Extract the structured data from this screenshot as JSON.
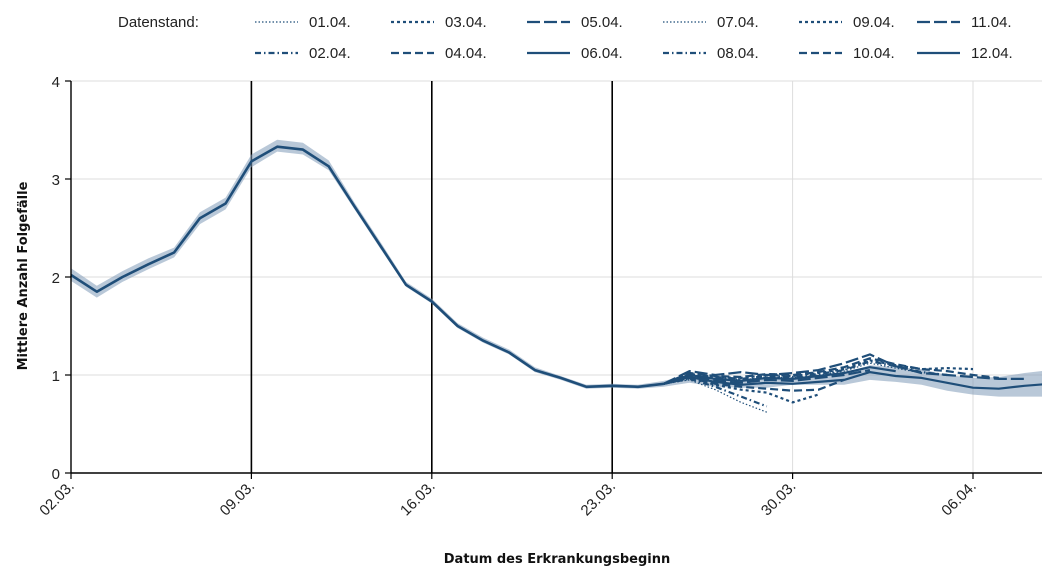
{
  "chart_data": {
    "type": "line",
    "xlabel": "Datum des Erkrankungsbeginn",
    "ylabel": "Mittlere Anzahl Folgefälle",
    "ylim": [
      0,
      4
    ],
    "yticks": [
      0,
      1,
      2,
      3,
      4
    ],
    "xlim": [
      "2020-03-02",
      "2020-04-09"
    ],
    "xticks": [
      {
        "date": "2020-03-02",
        "label": "02.03."
      },
      {
        "date": "2020-03-09",
        "label": "09.03."
      },
      {
        "date": "2020-03-16",
        "label": "16.03."
      },
      {
        "date": "2020-03-23",
        "label": "23.03."
      },
      {
        "date": "2020-03-30",
        "label": "30.03."
      },
      {
        "date": "2020-04-06",
        "label": "06.04."
      }
    ],
    "vlines": [
      "2020-03-09",
      "2020-03-16",
      "2020-03-23"
    ],
    "grid": true,
    "legend_title": "Datenstand:",
    "legend_position": "top",
    "colors": {
      "line": "#1f4e79",
      "band": "#7f9bb8",
      "vline": "#000000",
      "grid": "#dddddd"
    },
    "base": {
      "x": [
        "2020-03-02",
        "2020-03-03",
        "2020-03-04",
        "2020-03-05",
        "2020-03-06",
        "2020-03-07",
        "2020-03-08",
        "2020-03-09",
        "2020-03-10",
        "2020-03-11",
        "2020-03-12",
        "2020-03-13",
        "2020-03-14",
        "2020-03-15",
        "2020-03-16",
        "2020-03-17",
        "2020-03-18",
        "2020-03-19",
        "2020-03-20",
        "2020-03-21",
        "2020-03-22",
        "2020-03-23",
        "2020-03-24",
        "2020-03-25"
      ],
      "values": [
        2.02,
        1.85,
        2.0,
        2.13,
        2.25,
        2.6,
        2.75,
        3.18,
        3.33,
        3.3,
        3.13,
        2.72,
        2.32,
        1.92,
        1.75,
        1.5,
        1.35,
        1.23,
        1.05,
        0.97,
        0.88,
        0.89,
        0.88,
        0.91
      ]
    },
    "band": {
      "x": [
        "2020-03-02",
        "2020-03-03",
        "2020-03-04",
        "2020-03-05",
        "2020-03-06",
        "2020-03-07",
        "2020-03-08",
        "2020-03-09",
        "2020-03-10",
        "2020-03-11",
        "2020-03-12",
        "2020-03-13",
        "2020-03-14",
        "2020-03-15",
        "2020-03-16",
        "2020-03-17",
        "2020-03-18",
        "2020-03-19",
        "2020-03-20",
        "2020-03-21",
        "2020-03-22",
        "2020-03-23",
        "2020-03-24",
        "2020-03-25",
        "2020-03-26",
        "2020-03-27",
        "2020-03-28",
        "2020-03-29",
        "2020-03-30",
        "2020-03-31",
        "2020-04-01",
        "2020-04-02",
        "2020-04-03",
        "2020-04-04",
        "2020-04-05",
        "2020-04-06",
        "2020-04-07",
        "2020-04-08",
        "2020-04-09"
      ],
      "lower": [
        1.96,
        1.79,
        1.95,
        2.08,
        2.2,
        2.54,
        2.69,
        3.12,
        3.28,
        3.25,
        3.09,
        2.69,
        2.29,
        1.9,
        1.73,
        1.48,
        1.33,
        1.21,
        1.03,
        0.95,
        0.86,
        0.87,
        0.86,
        0.88,
        0.92,
        0.88,
        0.87,
        0.87,
        0.9,
        0.9,
        0.9,
        0.95,
        0.93,
        0.9,
        0.84,
        0.8,
        0.78,
        0.78,
        0.78
      ],
      "upper": [
        2.09,
        1.91,
        2.06,
        2.19,
        2.3,
        2.66,
        2.81,
        3.25,
        3.4,
        3.37,
        3.19,
        2.76,
        2.36,
        1.95,
        1.78,
        1.53,
        1.38,
        1.26,
        1.08,
        0.99,
        0.9,
        0.91,
        0.9,
        0.94,
        1.0,
        0.97,
        0.96,
        0.96,
        0.98,
        0.99,
        1.02,
        1.1,
        1.08,
        1.06,
        1.0,
        0.97,
        0.98,
        1.02,
        1.05
      ]
    },
    "series": [
      {
        "name": "01.04.",
        "style": "dotted",
        "x": [
          "2020-03-25",
          "2020-03-26",
          "2020-03-27",
          "2020-03-28",
          "2020-03-29"
        ],
        "values": [
          0.91,
          0.95,
          0.85,
          0.72,
          0.62
        ]
      },
      {
        "name": "02.04.",
        "style": "dashdot",
        "x": [
          "2020-03-25",
          "2020-03-26",
          "2020-03-27",
          "2020-03-28",
          "2020-03-29"
        ],
        "values": [
          0.91,
          0.96,
          0.88,
          0.78,
          0.68
        ]
      },
      {
        "name": "03.04.",
        "style": "dashed-short",
        "x": [
          "2020-03-25",
          "2020-03-26",
          "2020-03-27",
          "2020-03-28",
          "2020-03-29",
          "2020-03-30",
          "2020-03-31"
        ],
        "values": [
          0.91,
          0.97,
          0.9,
          0.85,
          0.82,
          0.72,
          0.8
        ]
      },
      {
        "name": "04.04.",
        "style": "dashed-medium",
        "x": [
          "2020-03-25",
          "2020-03-26",
          "2020-03-27",
          "2020-03-28",
          "2020-03-29",
          "2020-03-30",
          "2020-03-31",
          "2020-04-01"
        ],
        "values": [
          0.91,
          0.97,
          0.91,
          0.88,
          0.86,
          0.84,
          0.85,
          0.95
        ]
      },
      {
        "name": "05.04.",
        "style": "dashed-long",
        "x": [
          "2020-03-25",
          "2020-03-26",
          "2020-03-27",
          "2020-03-28",
          "2020-03-29",
          "2020-03-30",
          "2020-03-31",
          "2020-04-01",
          "2020-04-02"
        ],
        "values": [
          0.91,
          0.99,
          0.94,
          0.92,
          0.95,
          0.94,
          0.97,
          1.0,
          1.05
        ]
      },
      {
        "name": "06.04.",
        "style": "solid",
        "x": [
          "2020-03-25",
          "2020-03-26",
          "2020-03-27",
          "2020-03-28",
          "2020-03-29",
          "2020-03-30",
          "2020-03-31",
          "2020-04-01",
          "2020-04-02",
          "2020-04-03"
        ],
        "values": [
          0.91,
          1.0,
          0.96,
          0.94,
          0.97,
          0.96,
          0.99,
          1.02,
          1.08,
          1.04
        ]
      },
      {
        "name": "07.04.",
        "style": "dotted",
        "x": [
          "2020-03-25",
          "2020-03-26",
          "2020-03-27",
          "2020-03-28",
          "2020-03-29",
          "2020-03-30",
          "2020-03-31",
          "2020-04-01",
          "2020-04-02",
          "2020-04-03",
          "2020-04-04"
        ],
        "values": [
          0.91,
          1.0,
          0.97,
          0.95,
          0.98,
          0.97,
          1.0,
          1.04,
          1.12,
          1.07,
          1.02
        ]
      },
      {
        "name": "08.04.",
        "style": "dashdot",
        "x": [
          "2020-03-25",
          "2020-03-26",
          "2020-03-27",
          "2020-03-28",
          "2020-03-29",
          "2020-03-30",
          "2020-03-31",
          "2020-04-01",
          "2020-04-02",
          "2020-04-03",
          "2020-04-04",
          "2020-04-05"
        ],
        "values": [
          0.91,
          1.01,
          0.98,
          0.96,
          0.99,
          0.98,
          1.01,
          1.05,
          1.14,
          1.09,
          1.03,
          1.0
        ]
      },
      {
        "name": "09.04.",
        "style": "dashed-short",
        "x": [
          "2020-03-25",
          "2020-03-26",
          "2020-03-27",
          "2020-03-28",
          "2020-03-29",
          "2020-03-30",
          "2020-03-31",
          "2020-04-01",
          "2020-04-02",
          "2020-04-03",
          "2020-04-04",
          "2020-04-05",
          "2020-04-06"
        ],
        "values": [
          0.91,
          1.01,
          0.98,
          0.97,
          1.0,
          0.99,
          1.02,
          1.06,
          1.15,
          1.1,
          1.06,
          1.07,
          1.06
        ]
      },
      {
        "name": "10.04.",
        "style": "dashed-medium",
        "x": [
          "2020-03-25",
          "2020-03-26",
          "2020-03-27",
          "2020-03-28",
          "2020-03-29",
          "2020-03-30",
          "2020-03-31",
          "2020-04-01",
          "2020-04-02",
          "2020-04-03",
          "2020-04-04",
          "2020-04-05",
          "2020-04-06",
          "2020-04-07"
        ],
        "values": [
          0.91,
          1.02,
          0.99,
          0.98,
          1.01,
          1.0,
          1.03,
          1.08,
          1.17,
          1.11,
          1.06,
          1.04,
          1.0,
          0.97
        ]
      },
      {
        "name": "11.04.",
        "style": "dashed-long",
        "x": [
          "2020-03-25",
          "2020-03-26",
          "2020-03-27",
          "2020-03-28",
          "2020-03-29",
          "2020-03-30",
          "2020-03-31",
          "2020-04-01",
          "2020-04-02",
          "2020-04-03",
          "2020-04-04",
          "2020-04-05",
          "2020-04-06",
          "2020-04-07",
          "2020-04-08"
        ],
        "values": [
          0.91,
          1.04,
          1.0,
          1.03,
          1.0,
          1.02,
          1.05,
          1.12,
          1.21,
          1.09,
          1.02,
          1.0,
          0.98,
          0.96,
          0.96
        ]
      },
      {
        "name": "12.04.",
        "style": "solid",
        "x": [
          "2020-03-25",
          "2020-03-26",
          "2020-03-27",
          "2020-03-28",
          "2020-03-29",
          "2020-03-30",
          "2020-03-31",
          "2020-04-01",
          "2020-04-02",
          "2020-04-03",
          "2020-04-04",
          "2020-04-05",
          "2020-04-06",
          "2020-04-07",
          "2020-04-08",
          "2020-04-09"
        ],
        "values": [
          0.91,
          0.98,
          0.93,
          0.9,
          0.92,
          0.91,
          0.93,
          0.95,
          1.03,
          0.99,
          0.97,
          0.92,
          0.87,
          0.86,
          0.89,
          0.91
        ]
      }
    ]
  }
}
